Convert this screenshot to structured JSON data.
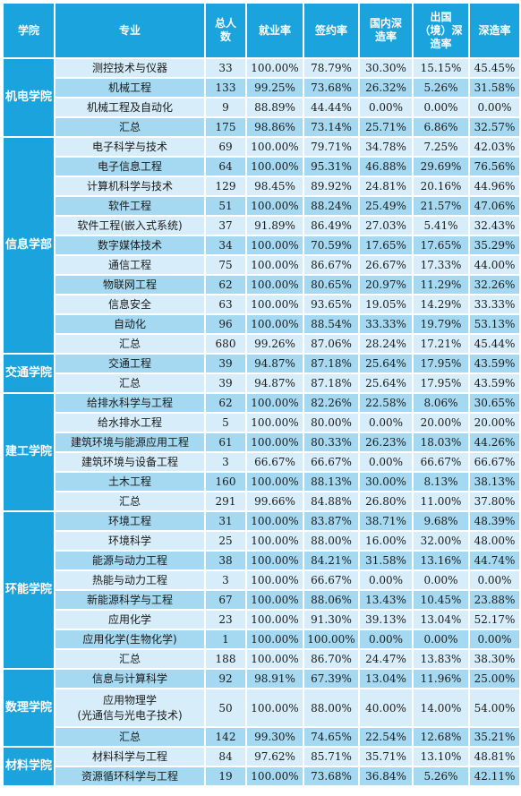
{
  "headers": [
    "学院",
    "专业",
    "总人数",
    "就业率",
    "签约率",
    "国内深造率",
    "出国（境）深造率",
    "深造率"
  ],
  "colleges": [
    {
      "name": "机电学院",
      "rows": [
        {
          "major": "测控技术与仪器",
          "total": "33",
          "employment": "100.00%",
          "signing": "78.79%",
          "domestic": "30.30%",
          "abroad": "15.15%",
          "further": "45.45%"
        },
        {
          "major": "机械工程",
          "total": "133",
          "employment": "99.25%",
          "signing": "73.68%",
          "domestic": "26.32%",
          "abroad": "5.26%",
          "further": "31.58%"
        },
        {
          "major": "机械工程及自动化",
          "total": "9",
          "employment": "88.89%",
          "signing": "44.44%",
          "domestic": "0.00%",
          "abroad": "0.00%",
          "further": "0.00%"
        },
        {
          "major": "汇总",
          "total": "175",
          "employment": "98.86%",
          "signing": "73.14%",
          "domestic": "25.71%",
          "abroad": "6.86%",
          "further": "32.57%"
        }
      ]
    },
    {
      "name": "信息学部",
      "rows": [
        {
          "major": "电子科学与技术",
          "total": "69",
          "employment": "100.00%",
          "signing": "79.71%",
          "domestic": "34.78%",
          "abroad": "7.25%",
          "further": "42.03%"
        },
        {
          "major": "电子信息工程",
          "total": "64",
          "employment": "100.00%",
          "signing": "95.31%",
          "domestic": "46.88%",
          "abroad": "29.69%",
          "further": "76.56%"
        },
        {
          "major": "计算机科学与技术",
          "total": "129",
          "employment": "98.45%",
          "signing": "89.92%",
          "domestic": "24.81%",
          "abroad": "20.16%",
          "further": "44.96%"
        },
        {
          "major": "软件工程",
          "total": "51",
          "employment": "100.00%",
          "signing": "88.24%",
          "domestic": "25.49%",
          "abroad": "21.57%",
          "further": "47.06%"
        },
        {
          "major": "软件工程(嵌入式系统)",
          "total": "37",
          "employment": "91.89%",
          "signing": "86.49%",
          "domestic": "27.03%",
          "abroad": "5.41%",
          "further": "32.43%"
        },
        {
          "major": "数字媒体技术",
          "total": "34",
          "employment": "100.00%",
          "signing": "70.59%",
          "domestic": "17.65%",
          "abroad": "17.65%",
          "further": "35.29%"
        },
        {
          "major": "通信工程",
          "total": "75",
          "employment": "100.00%",
          "signing": "86.67%",
          "domestic": "26.67%",
          "abroad": "17.33%",
          "further": "44.00%"
        },
        {
          "major": "物联网工程",
          "total": "62",
          "employment": "100.00%",
          "signing": "80.65%",
          "domestic": "20.97%",
          "abroad": "11.29%",
          "further": "32.26%"
        },
        {
          "major": "信息安全",
          "total": "63",
          "employment": "100.00%",
          "signing": "93.65%",
          "domestic": "19.05%",
          "abroad": "14.29%",
          "further": "33.33%"
        },
        {
          "major": "自动化",
          "total": "96",
          "employment": "100.00%",
          "signing": "88.54%",
          "domestic": "33.33%",
          "abroad": "19.79%",
          "further": "53.13%"
        },
        {
          "major": "汇总",
          "total": "680",
          "employment": "99.26%",
          "signing": "87.06%",
          "domestic": "28.24%",
          "abroad": "17.21%",
          "further": "45.44%"
        }
      ]
    },
    {
      "name": "交通学院",
      "rows": [
        {
          "major": "交通工程",
          "total": "39",
          "employment": "94.87%",
          "signing": "87.18%",
          "domestic": "25.64%",
          "abroad": "17.95%",
          "further": "43.59%"
        },
        {
          "major": "汇总",
          "total": "39",
          "employment": "94.87%",
          "signing": "87.18%",
          "domestic": "25.64%",
          "abroad": "17.95%",
          "further": "43.59%"
        }
      ]
    },
    {
      "name": "建工学院",
      "rows": [
        {
          "major": "给排水科学与工程",
          "total": "62",
          "employment": "100.00%",
          "signing": "82.26%",
          "domestic": "22.58%",
          "abroad": "8.06%",
          "further": "30.65%"
        },
        {
          "major": "给水排水工程",
          "total": "5",
          "employment": "100.00%",
          "signing": "80.00%",
          "domestic": "0.00%",
          "abroad": "20.00%",
          "further": "20.00%"
        },
        {
          "major": "建筑环境与能源应用工程",
          "total": "61",
          "employment": "100.00%",
          "signing": "80.33%",
          "domestic": "26.23%",
          "abroad": "18.03%",
          "further": "44.26%"
        },
        {
          "major": "建筑环境与设备工程",
          "total": "3",
          "employment": "66.67%",
          "signing": "66.67%",
          "domestic": "0.00%",
          "abroad": "66.67%",
          "further": "66.67%"
        },
        {
          "major": "土木工程",
          "total": "160",
          "employment": "100.00%",
          "signing": "88.13%",
          "domestic": "30.00%",
          "abroad": "8.13%",
          "further": "38.13%"
        },
        {
          "major": "汇总",
          "total": "291",
          "employment": "99.66%",
          "signing": "84.88%",
          "domestic": "26.80%",
          "abroad": "11.00%",
          "further": "37.80%"
        }
      ]
    },
    {
      "name": "环能学院",
      "rows": [
        {
          "major": "环境工程",
          "total": "31",
          "employment": "100.00%",
          "signing": "83.87%",
          "domestic": "38.71%",
          "abroad": "9.68%",
          "further": "48.39%"
        },
        {
          "major": "环境科学",
          "total": "25",
          "employment": "100.00%",
          "signing": "88.00%",
          "domestic": "16.00%",
          "abroad": "32.00%",
          "further": "48.00%"
        },
        {
          "major": "能源与动力工程",
          "total": "38",
          "employment": "100.00%",
          "signing": "84.21%",
          "domestic": "31.58%",
          "abroad": "13.16%",
          "further": "44.74%"
        },
        {
          "major": "热能与动力工程",
          "total": "3",
          "employment": "100.00%",
          "signing": "66.67%",
          "domestic": "0.00%",
          "abroad": "0.00%",
          "further": "0.00%"
        },
        {
          "major": "新能源科学与工程",
          "total": "67",
          "employment": "100.00%",
          "signing": "88.06%",
          "domestic": "13.43%",
          "abroad": "10.45%",
          "further": "23.88%"
        },
        {
          "major": "应用化学",
          "total": "23",
          "employment": "100.00%",
          "signing": "91.30%",
          "domestic": "39.13%",
          "abroad": "13.04%",
          "further": "52.17%"
        },
        {
          "major": "应用化学(生物化学)",
          "total": "1",
          "employment": "100.00%",
          "signing": "100.00%",
          "domestic": "0.00%",
          "abroad": "0.00%",
          "further": "0.00%"
        },
        {
          "major": "汇总",
          "total": "188",
          "employment": "100.00%",
          "signing": "86.70%",
          "domestic": "24.47%",
          "abroad": "13.83%",
          "further": "38.30%"
        }
      ]
    },
    {
      "name": "数理学院",
      "rows": [
        {
          "major": "信息与计算科学",
          "total": "92",
          "employment": "98.91%",
          "signing": "67.39%",
          "domestic": "13.04%",
          "abroad": "11.96%",
          "further": "25.00%"
        },
        {
          "major": "应用物理学\n(光通信与光电子技术)",
          "total": "50",
          "employment": "100.00%",
          "signing": "88.00%",
          "domestic": "40.00%",
          "abroad": "14.00%",
          "further": "54.00%",
          "tall": true
        },
        {
          "major": "汇总",
          "total": "142",
          "employment": "99.30%",
          "signing": "74.65%",
          "domestic": "22.54%",
          "abroad": "12.68%",
          "further": "35.21%"
        }
      ]
    },
    {
      "name": "材料学院",
      "rows": [
        {
          "major": "材料科学与工程",
          "total": "84",
          "employment": "97.62%",
          "signing": "85.71%",
          "domestic": "35.71%",
          "abroad": "13.10%",
          "further": "48.81%"
        },
        {
          "major": "资源循环科学与工程",
          "total": "19",
          "employment": "100.00%",
          "signing": "73.68%",
          "domestic": "36.84%",
          "abroad": "5.26%",
          "further": "42.11%"
        }
      ]
    }
  ]
}
